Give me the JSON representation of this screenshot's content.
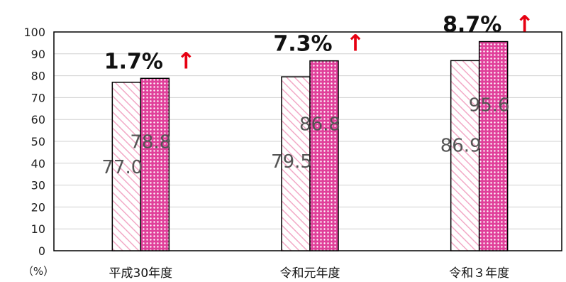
{
  "chart_data": {
    "type": "bar",
    "categories": [
      "平成30年度",
      "令和元年度",
      "令和３年度"
    ],
    "series": [
      {
        "values": [
          77.0,
          79.5,
          86.9
        ],
        "labels": [
          "77.0",
          "79.5",
          "86.9"
        ],
        "pattern": "diagonal-hatch",
        "color": "#f2a9c6"
      },
      {
        "values": [
          78.8,
          86.8,
          95.6
        ],
        "labels": [
          "78.8",
          "86.8",
          "95.6"
        ],
        "pattern": "dotted",
        "color": "#e0409a"
      }
    ],
    "ylim": [
      0,
      100
    ],
    "yticks": [
      "0",
      "10",
      "20",
      "30",
      "40",
      "50",
      "60",
      "70",
      "80",
      "90",
      "100"
    ],
    "yunit": "（%）",
    "grid": true,
    "annotations": [
      {
        "text": "1.7%",
        "arrow": "↑"
      },
      {
        "text": "7.3%",
        "arrow": "↑"
      },
      {
        "text": "8.7%",
        "arrow": "↑"
      }
    ],
    "arrow_color": "#e60012"
  }
}
